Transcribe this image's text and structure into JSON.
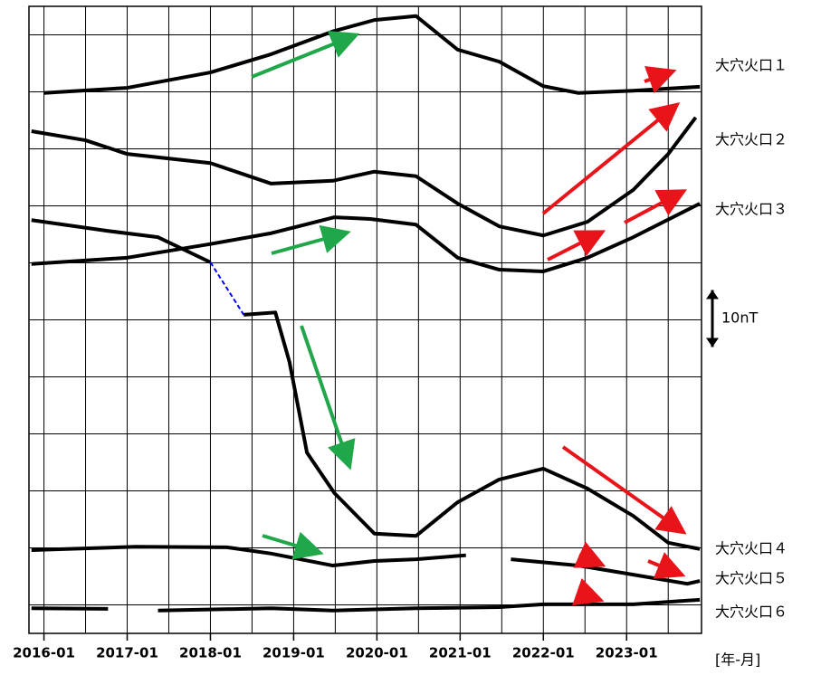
{
  "chart_data": {
    "type": "line",
    "xlim": [
      2015.82,
      2023.9
    ],
    "ylim": [
      -5,
      105
    ],
    "xticks": [
      {
        "value": 2016,
        "label": "2016-01"
      },
      {
        "value": 2017,
        "label": "2017-01"
      },
      {
        "value": 2018,
        "label": "2018-01"
      },
      {
        "value": 2019,
        "label": "2019-01"
      },
      {
        "value": 2020,
        "label": "2020-01"
      },
      {
        "value": 2021,
        "label": "2021-01"
      },
      {
        "value": 2022,
        "label": "2022-01"
      },
      {
        "value": 2023,
        "label": "2023-01"
      }
    ],
    "xminor": [
      2016.5,
      2017.5,
      2018.5,
      2019.5,
      2020.5,
      2021.5,
      2022.5,
      2023.5
    ],
    "yticks": [
      0,
      10,
      20,
      30,
      40,
      50,
      60,
      70,
      80,
      90,
      100
    ],
    "grid": true,
    "x_label": "[年-月]",
    "scale_bar": {
      "value": 10,
      "label": "10nT"
    },
    "bridge_color": "#0000ff",
    "series": [
      {
        "name": "大穴火口１",
        "color": "#000000",
        "x": [
          2016.0,
          2017.0,
          2018.0,
          2018.73,
          2019.47,
          2019.97,
          2020.47,
          2020.97,
          2021.47,
          2022.0,
          2022.42,
          2023.08,
          2023.88
        ],
        "values": [
          89.8,
          90.7,
          93.4,
          96.6,
          100.6,
          102.6,
          103.3,
          97.4,
          95.3,
          91.0,
          89.8,
          90.2,
          90.9
        ]
      },
      {
        "name": "大穴火口２",
        "color": "#000000",
        "x": [
          2015.85,
          2016.5,
          2017.0,
          2018.0,
          2018.73,
          2019.47,
          2019.97,
          2020.47,
          2020.97,
          2021.47,
          2022.0,
          2022.53,
          2023.08,
          2023.5,
          2023.83
        ],
        "values": [
          83.1,
          81.5,
          79.1,
          77.5,
          73.9,
          74.4,
          76.0,
          75.2,
          70.4,
          66.4,
          64.8,
          67.2,
          72.8,
          79.1,
          85.5
        ]
      },
      {
        "name": "大穴火口３",
        "color": "#000000",
        "x": [
          2015.85,
          2017.0,
          2018.0,
          2018.73,
          2019.49,
          2019.92,
          2020.47,
          2020.97,
          2021.47,
          2022.0,
          2022.53,
          2023.08,
          2023.88
        ],
        "values": [
          59.8,
          60.9,
          63.3,
          65.2,
          68.0,
          67.7,
          66.7,
          60.9,
          58.8,
          58.5,
          60.9,
          64.5,
          70.4
        ]
      },
      {
        "name": "大穴火口４",
        "color": "#000000",
        "x": [
          2015.85,
          2016.77,
          2017.37,
          2018.0,
          2018.2,
          2018.4,
          2018.78,
          2018.95,
          2019.16,
          2019.49,
          2019.97,
          2020.47,
          2020.97,
          2021.47,
          2022.0,
          2022.53,
          2023.08,
          2023.5,
          2023.88
        ],
        "values": [
          67.5,
          65.6,
          64.5,
          60.1,
          null,
          50.9,
          51.3,
          42.6,
          26.7,
          19.6,
          12.5,
          12.1,
          18.0,
          22.0,
          23.9,
          20.4,
          15.6,
          10.9,
          9.8
        ]
      },
      {
        "name": "大穴火口５",
        "color": "#000000",
        "x": [
          2015.85,
          2017.1,
          2018.2,
          2018.73,
          2019.47,
          2019.97,
          2020.47,
          2021.07,
          2021.3,
          2021.61,
          2022.42,
          2023.08,
          2023.73,
          2023.88
        ],
        "values": [
          9.6,
          10.2,
          10.1,
          9.0,
          6.9,
          7.7,
          8.0,
          8.7,
          null,
          8.0,
          6.9,
          5.3,
          3.7,
          4.2
        ]
      },
      {
        "name": "大穴火口６",
        "color": "#000000",
        "x": [
          2015.85,
          2016.77,
          2017.2,
          2017.37,
          2018.73,
          2019.47,
          2020.47,
          2021.47,
          2022.0,
          2023.08,
          2023.88
        ],
        "values": [
          -0.6,
          -0.7,
          null,
          -1.0,
          -0.6,
          -1.0,
          -0.6,
          -0.4,
          0.1,
          0.1,
          0.9
        ]
      }
    ]
  }
}
